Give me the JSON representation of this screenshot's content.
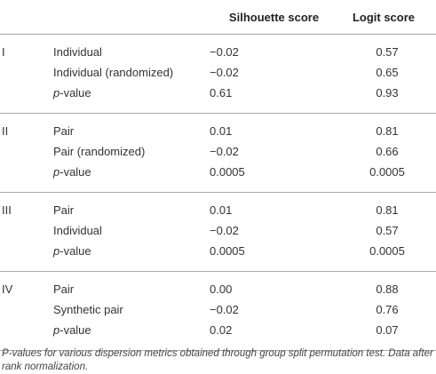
{
  "header": {
    "columns": [
      "Silhouette score",
      "Logit score"
    ]
  },
  "groups": [
    {
      "label": "I",
      "rows": [
        [
          "Individual",
          "−0.02",
          "0.57"
        ],
        [
          "Individual (randomized)",
          "−0.02",
          "0.65"
        ],
        [
          "p-value",
          "0.61",
          "0.93"
        ]
      ]
    },
    {
      "label": "II",
      "rows": [
        [
          "Pair",
          "0.01",
          "0.81"
        ],
        [
          "Pair (randomized)",
          "−0.02",
          "0.66"
        ],
        [
          "p-value",
          "0.0005",
          "0.0005"
        ]
      ]
    },
    {
      "label": "III",
      "rows": [
        [
          "Pair",
          "0.01",
          "0.81"
        ],
        [
          "Individual",
          "−0.02",
          "0.57"
        ],
        [
          "p-value",
          "0.0005",
          "0.0005"
        ]
      ]
    },
    {
      "label": "IV",
      "rows": [
        [
          "Pair",
          "0.00",
          "0.88"
        ],
        [
          "Synthetic pair",
          "−0.02",
          "0.76"
        ],
        [
          "p-value",
          "0.02",
          "0.07"
        ]
      ]
    }
  ],
  "footnote": "P-values for various dispersion metrics obtained through group split permutation test. Data after rank normalization."
}
